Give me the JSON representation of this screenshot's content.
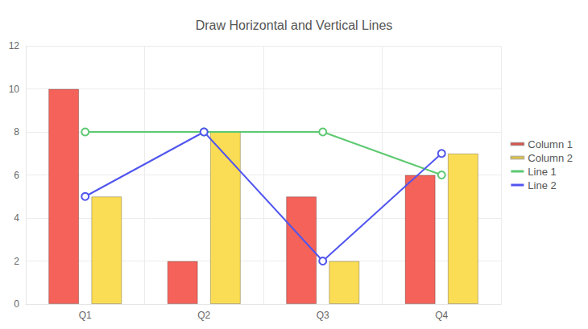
{
  "chart_data": {
    "type": "bar",
    "title": "Draw Horizontal and Vertical Lines",
    "categories": [
      "Q1",
      "Q2",
      "Q3",
      "Q4"
    ],
    "series": [
      {
        "name": "Column 1",
        "type": "bar",
        "color": "#f4625a",
        "values": [
          10,
          2,
          5,
          6
        ]
      },
      {
        "name": "Column 2",
        "type": "bar",
        "color": "#fbdd55",
        "values": [
          5,
          8,
          2,
          7
        ]
      },
      {
        "name": "Line 1",
        "type": "line",
        "color": "#5dc971",
        "marker": "emptyCircle",
        "values": [
          8,
          8,
          8,
          6
        ]
      },
      {
        "name": "Line 2",
        "type": "line",
        "color": "#5055ee",
        "marker": "emptyCircle",
        "values": [
          5,
          8,
          2,
          7
        ]
      }
    ],
    "ylim": [
      0,
      12
    ],
    "yticks": [
      0,
      2,
      4,
      6,
      8,
      10,
      12
    ],
    "grid": true,
    "legend": "right"
  }
}
